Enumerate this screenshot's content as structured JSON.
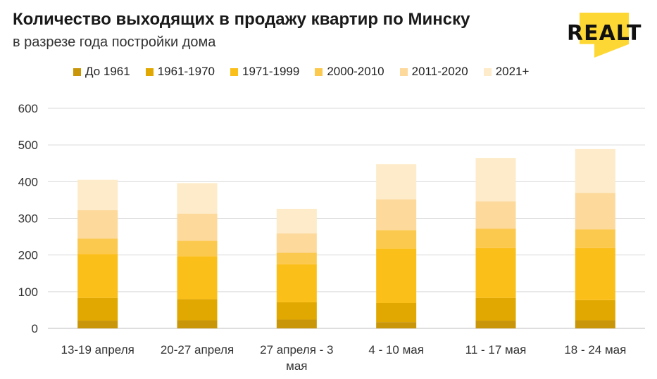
{
  "chart_data": {
    "type": "bar",
    "stacked": true,
    "title": "Количество выходящих в продажу квартир по Минску",
    "subtitle": "в разрезе года постройки дома",
    "brand": "REALT",
    "categories": [
      "13-19 апреля",
      "20-27 апреля",
      "27 апреля - 3 мая",
      "4 - 10 мая",
      "11 - 17 мая",
      "18 - 24 мая"
    ],
    "category_lines": [
      [
        "13-19 апреля"
      ],
      [
        "20-27 апреля"
      ],
      [
        "27 апреля - 3",
        "мая"
      ],
      [
        "4 - 10 мая"
      ],
      [
        "11 - 17 мая"
      ],
      [
        "18 - 24 мая"
      ]
    ],
    "series": [
      {
        "name": "До 1961",
        "color": "#c9960a",
        "values": [
          21,
          22,
          24,
          17,
          21,
          22
        ]
      },
      {
        "name": "1961-1970",
        "color": "#e0a800",
        "values": [
          62,
          58,
          47,
          52,
          62,
          55
        ]
      },
      {
        "name": "1971-1999",
        "color": "#fbbf1a",
        "values": [
          120,
          117,
          104,
          149,
          136,
          142
        ]
      },
      {
        "name": "2000-2010",
        "color": "#fcc94f",
        "values": [
          42,
          42,
          31,
          50,
          53,
          51
        ]
      },
      {
        "name": "2011-2020",
        "color": "#fdd99b",
        "values": [
          77,
          74,
          53,
          84,
          74,
          99
        ]
      },
      {
        "name": "2021+",
        "color": "#fdebc9",
        "values": [
          83,
          83,
          67,
          96,
          118,
          120
        ]
      }
    ],
    "ylim": [
      0,
      600
    ],
    "yticks": [
      0,
      100,
      200,
      300,
      400,
      500,
      600
    ],
    "grid": true,
    "legend_position": "top"
  }
}
